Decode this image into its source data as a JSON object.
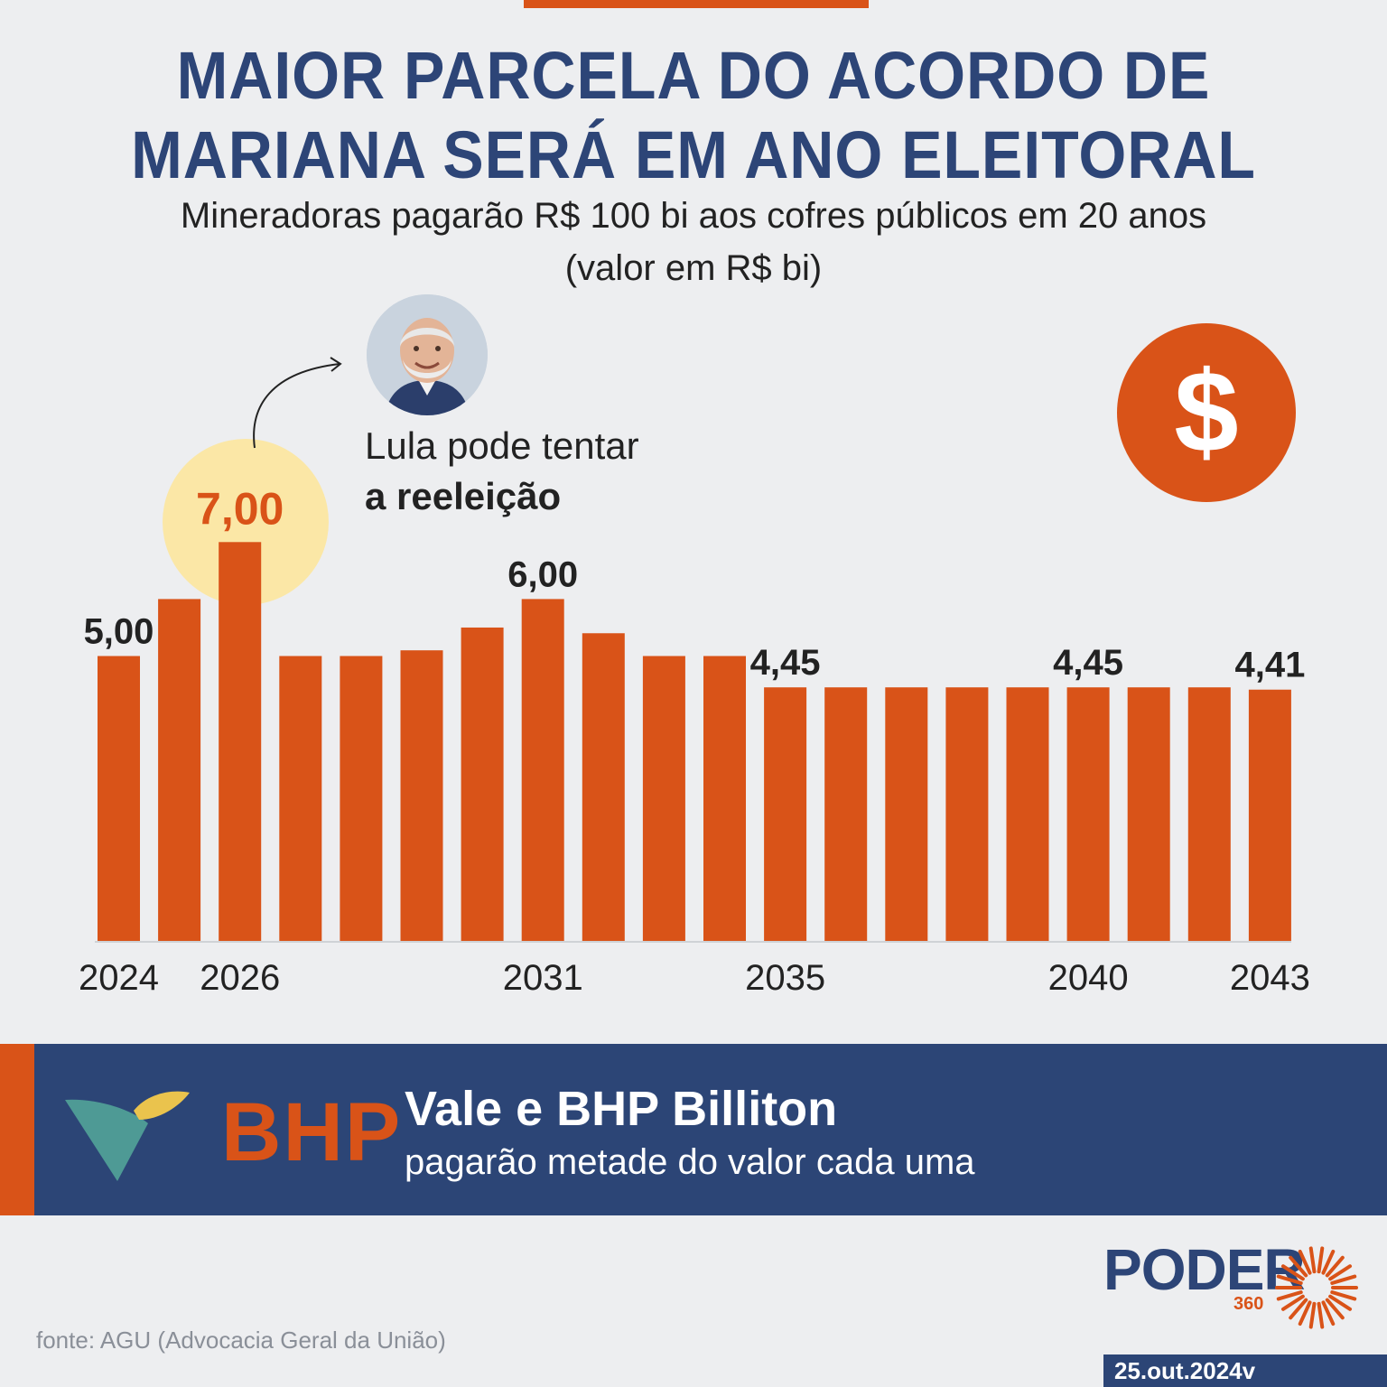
{
  "header": {
    "title_line1": "MAIOR PARCELA DO ACORDO DE",
    "title_line2": "MARIANA SERÁ EM ANO ELEITORAL",
    "subtitle_line1": "Mineradoras pagarão R$ 100 bi aos cofres públicos em 20 anos",
    "subtitle_line2": "(valor em R$ bi)"
  },
  "badge": {
    "symbol": "$",
    "color": "#d95318"
  },
  "annotation": {
    "line1": "Lula pode tentar",
    "line2": "a reeleição",
    "highlight_color": "#fbe7a6"
  },
  "chart_data": {
    "type": "bar",
    "categories": [
      "2024",
      "2025",
      "2026",
      "2027",
      "2028",
      "2029",
      "2030",
      "2031",
      "2032",
      "2033",
      "2034",
      "2035",
      "2036",
      "2037",
      "2038",
      "2039",
      "2040",
      "2041",
      "2042",
      "2043"
    ],
    "values": [
      5.0,
      6.0,
      7.0,
      5.0,
      5.0,
      5.1,
      5.5,
      6.0,
      5.4,
      5.0,
      5.0,
      4.45,
      4.45,
      4.45,
      4.45,
      4.45,
      4.45,
      4.45,
      4.45,
      4.41
    ],
    "data_labels": {
      "0": "5,00",
      "2": "7,00",
      "7": "6,00",
      "11": "4,45",
      "16": "4,45",
      "19": "4,41"
    },
    "x_tick_labels": {
      "0": "2024",
      "2": "2026",
      "7": "2031",
      "11": "2035",
      "16": "2040",
      "19": "2043"
    },
    "highlight_index": 2,
    "bar_color": "#d95318",
    "highlight_label_color": "#d95318",
    "ylim": [
      0,
      7
    ]
  },
  "banner": {
    "logo_text": "BHP",
    "title": "Vale e BHP Billiton",
    "subtitle": "pagarão metade do valor cada uma"
  },
  "footer": {
    "source": "fonte: AGU (Advocacia Geral da União)",
    "brand": "PODER",
    "brand_number": "360",
    "date": "25.out.2024v"
  }
}
